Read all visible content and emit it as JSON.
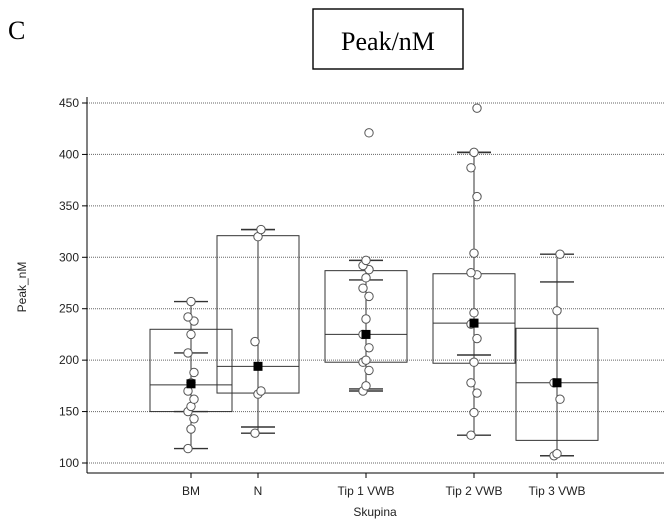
{
  "panel_letter": "C",
  "chart_data": {
    "type": "box",
    "title": "Peak/nM",
    "xlabel": "Skupina",
    "ylabel": "Peak_nM",
    "ylim": [
      100,
      450
    ],
    "yticks": [
      100,
      150,
      200,
      250,
      300,
      350,
      400,
      450
    ],
    "grid": true,
    "categories": [
      "BM",
      "N",
      "Tip 1 VWB",
      "Tip 2 VWB",
      "Tip 3 VWB"
    ],
    "boxes": [
      {
        "category": "BM",
        "q1": 150,
        "median": 176,
        "q3": 230,
        "mean": 177,
        "whisker_low": 114,
        "whisker_high": 257,
        "ci_low": 150,
        "ci_high": 207,
        "points": [
          114,
          133,
          143,
          150,
          155,
          162,
          170,
          178,
          188,
          207,
          225,
          238,
          242,
          257
        ]
      },
      {
        "category": "N",
        "q1": 168,
        "median": 194,
        "q3": 321,
        "mean": 194,
        "whisker_low": 129,
        "whisker_high": 327,
        "ci_low": 135,
        "ci_high": 327,
        "points": [
          129,
          167,
          170,
          218,
          320,
          327
        ]
      },
      {
        "category": "Tip 1 VWB",
        "q1": 198,
        "median": 225,
        "q3": 287,
        "mean": 225,
        "whisker_low": 170,
        "whisker_high": 297,
        "ci_low": 172,
        "ci_high": 278,
        "points": [
          170,
          175,
          190,
          198,
          200,
          212,
          225,
          240,
          262,
          270,
          280,
          288,
          292,
          297,
          421
        ]
      },
      {
        "category": "Tip 2 VWB",
        "q1": 197,
        "median": 236,
        "q3": 284,
        "mean": 236,
        "whisker_low": 127,
        "whisker_high": 402,
        "ci_low": 205,
        "ci_high": 402,
        "points": [
          127,
          149,
          168,
          178,
          198,
          221,
          235,
          246,
          283,
          285,
          304,
          359,
          387,
          402,
          445
        ]
      },
      {
        "category": "Tip 3 VWB",
        "q1": 122,
        "median": 178,
        "q3": 231,
        "mean": 178,
        "whisker_low": 107,
        "whisker_high": 303,
        "ci_low": 107,
        "ci_high": 276,
        "points": [
          107,
          109,
          162,
          178,
          248,
          303
        ]
      }
    ]
  }
}
